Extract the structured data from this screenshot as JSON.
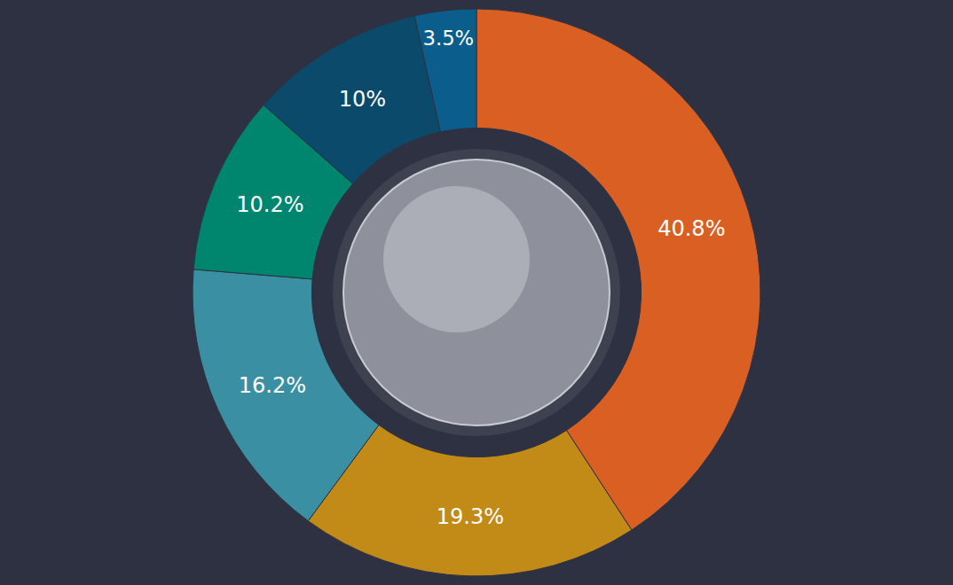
{
  "chart_data": {
    "type": "pie",
    "values": [
      40.8,
      19.3,
      16.2,
      10.2,
      10,
      3.5
    ],
    "value_labels": [
      "40.8%",
      "19.3%",
      "16.2%",
      "10.2%",
      "10%",
      "3.5%"
    ],
    "colors": [
      "#d95f22",
      "#c28a17",
      "#3a8fa3",
      "#00866e",
      "#0b4a6b",
      "#0b5e8c"
    ],
    "data_labels": true
  }
}
